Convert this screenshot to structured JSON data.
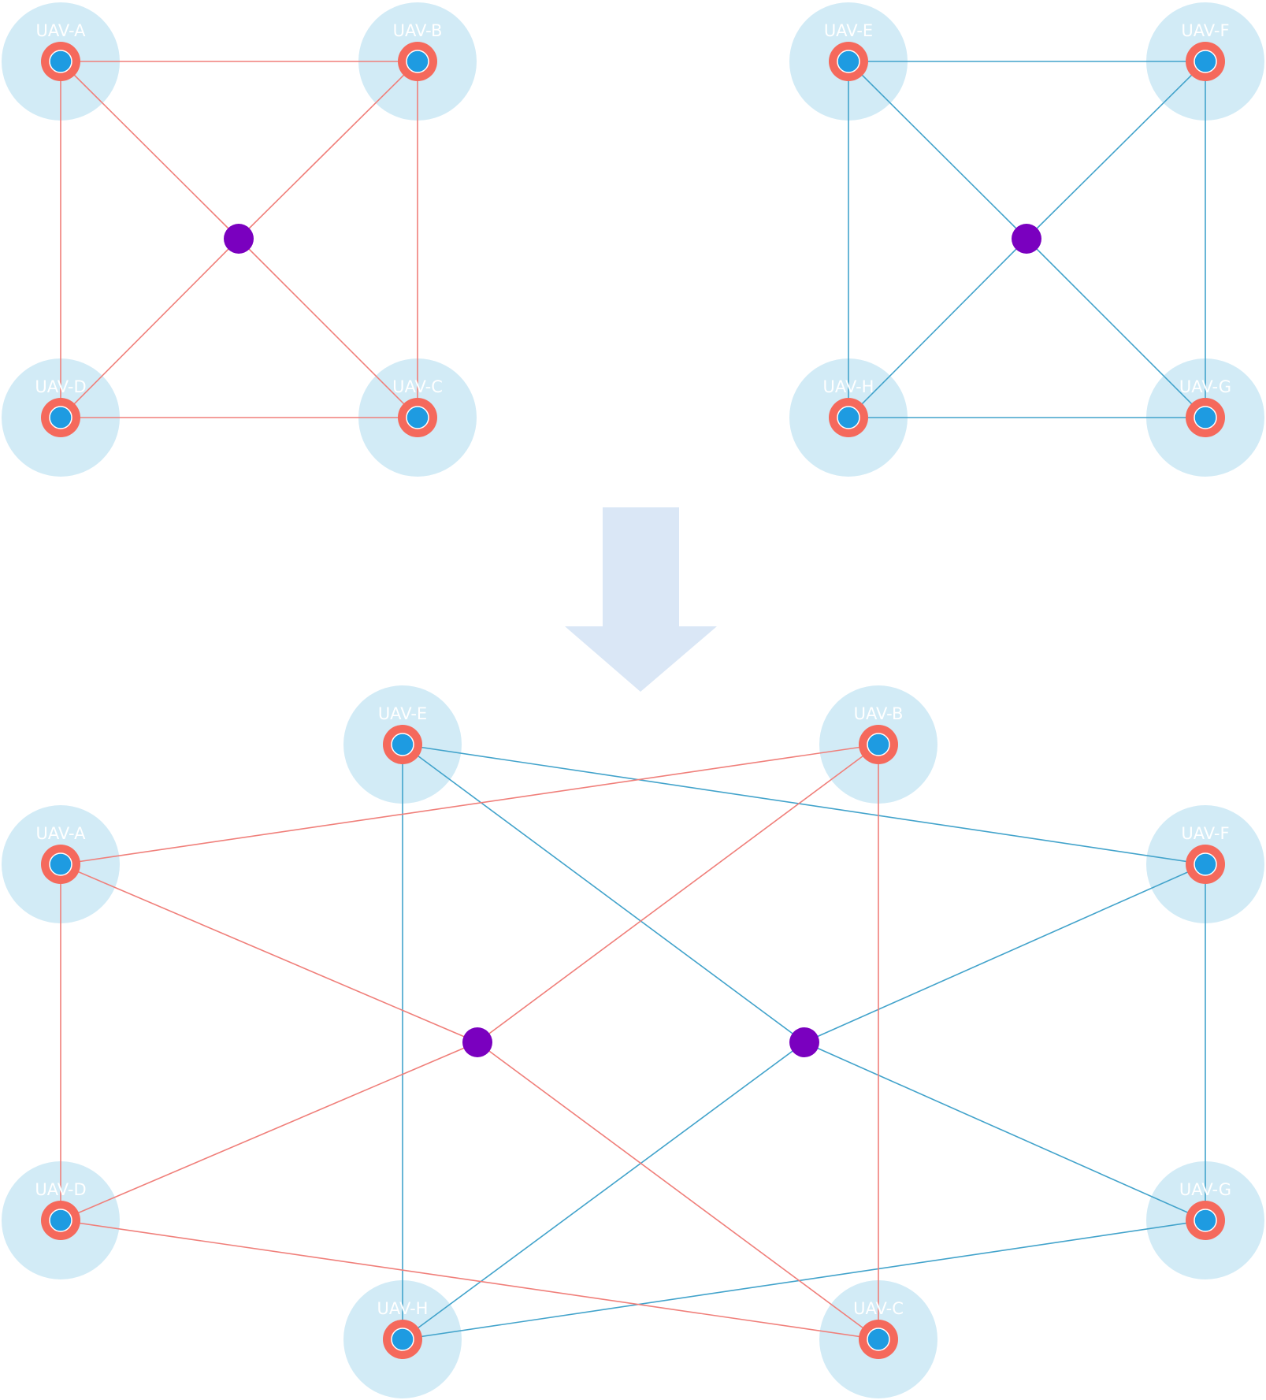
{
  "colors": {
    "coverage": "#d2ebf6",
    "ring": "#f5695c",
    "core": "#1e9be1",
    "hub": "#7a00bf",
    "red_link": "#f07f7a",
    "blue_link": "#42a3cb",
    "arrow": "#dae7f6"
  },
  "groups": [
    {
      "name": "top-left-swarm",
      "link_color": "red",
      "nodes": [
        {
          "id": "A",
          "label": "UAV-A"
        },
        {
          "id": "B",
          "label": "UAV-B"
        },
        {
          "id": "D",
          "label": "UAV-D"
        },
        {
          "id": "C",
          "label": "UAV-C"
        }
      ]
    },
    {
      "name": "top-right-swarm",
      "link_color": "blue",
      "nodes": [
        {
          "id": "E",
          "label": "UAV-E"
        },
        {
          "id": "F",
          "label": "UAV-F"
        },
        {
          "id": "H",
          "label": "UAV-H"
        },
        {
          "id": "G",
          "label": "UAV-G"
        }
      ]
    },
    {
      "name": "merged-network",
      "nodes": [
        {
          "id": "E",
          "label": "UAV-E"
        },
        {
          "id": "B",
          "label": "UAV-B"
        },
        {
          "id": "A",
          "label": "UAV-A"
        },
        {
          "id": "F",
          "label": "UAV-F"
        },
        {
          "id": "D",
          "label": "UAV-D"
        },
        {
          "id": "G",
          "label": "UAV-G"
        },
        {
          "id": "H",
          "label": "UAV-H"
        },
        {
          "id": "C",
          "label": "UAV-C"
        }
      ]
    }
  ],
  "links": {
    "top_left": [
      [
        "A",
        "B"
      ],
      [
        "A",
        "D"
      ],
      [
        "B",
        "C"
      ],
      [
        "D",
        "C"
      ],
      [
        "A",
        "hub"
      ],
      [
        "B",
        "hub"
      ],
      [
        "D",
        "hub"
      ],
      [
        "C",
        "hub"
      ]
    ],
    "top_right": [
      [
        "E",
        "F"
      ],
      [
        "E",
        "H"
      ],
      [
        "F",
        "G"
      ],
      [
        "H",
        "G"
      ],
      [
        "E",
        "hub"
      ],
      [
        "F",
        "hub"
      ],
      [
        "H",
        "hub"
      ],
      [
        "G",
        "hub"
      ]
    ],
    "merged_red": [
      [
        "A",
        "B"
      ],
      [
        "A",
        "D"
      ],
      [
        "B",
        "C"
      ],
      [
        "D",
        "C"
      ],
      [
        "A",
        "hub1"
      ],
      [
        "B",
        "hub1"
      ],
      [
        "D",
        "hub1"
      ],
      [
        "C",
        "hub1"
      ]
    ],
    "merged_blue": [
      [
        "E",
        "F"
      ],
      [
        "E",
        "H"
      ],
      [
        "F",
        "G"
      ],
      [
        "H",
        "G"
      ],
      [
        "E",
        "hub2"
      ],
      [
        "F",
        "hub2"
      ],
      [
        "H",
        "hub2"
      ],
      [
        "G",
        "hub2"
      ]
    ]
  }
}
